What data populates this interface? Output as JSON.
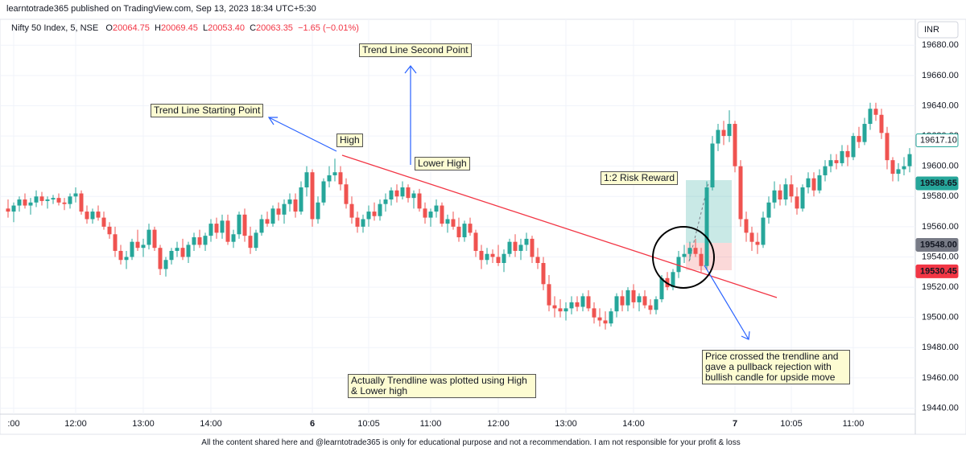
{
  "header": {
    "publisher": "learntotrade365 published on TradingView.com, Sep 13, 2023 18:34 UTC+5:30",
    "symbol": "Nifty 50 Index, 5, NSE",
    "ohlc": [
      {
        "label": "O",
        "value": "20064.75"
      },
      {
        "label": "H",
        "value": "20069.45"
      },
      {
        "label": "L",
        "value": "20053.40"
      },
      {
        "label": "C",
        "value": "20063.35"
      }
    ],
    "change": "−1.65 (−0.01%)",
    "currency": "INR"
  },
  "chart_data": {
    "type": "candlestick",
    "up_color": "#26a69a",
    "down_color": "#ef5350",
    "ylim": [
      19436,
      19686
    ],
    "yticks": [
      {
        "value": 19440,
        "label": "19440.00"
      },
      {
        "value": 19460,
        "label": "19460.00"
      },
      {
        "value": 19480,
        "label": "19480.00"
      },
      {
        "value": 19500,
        "label": "19500.00"
      },
      {
        "value": 19520,
        "label": "19520.00"
      },
      {
        "value": 19540,
        "label": "19540.00"
      },
      {
        "value": 19560,
        "label": "19560.00"
      },
      {
        "value": 19580,
        "label": "19580.00"
      },
      {
        "value": 19600,
        "label": "19600.00"
      },
      {
        "value": 19620,
        "label": "19620.00"
      },
      {
        "value": 19640,
        "label": "19640.00"
      },
      {
        "value": 19660,
        "label": "19660.00"
      },
      {
        "value": 19680,
        "label": "19680.00"
      }
    ],
    "xticks": [
      {
        "value": 1,
        "label": ":00"
      },
      {
        "value": 12,
        "label": "12:00"
      },
      {
        "value": 24,
        "label": "13:00"
      },
      {
        "value": 36,
        "label": "14:00"
      },
      {
        "value": 54,
        "label": "6",
        "bold": true
      },
      {
        "value": 64,
        "label": "10:05"
      },
      {
        "value": 75,
        "label": "11:00"
      },
      {
        "value": 87,
        "label": "12:00"
      },
      {
        "value": 99,
        "label": "13:00"
      },
      {
        "value": 111,
        "label": "14:00"
      },
      {
        "value": 129,
        "label": "7",
        "bold": true
      },
      {
        "value": 139,
        "label": "10:05"
      },
      {
        "value": 150,
        "label": "11:00"
      }
    ],
    "price_labels": [
      {
        "value": 19617.1,
        "label": "19617.10",
        "color": "#26a69a",
        "outline": true
      },
      {
        "value": 19588.65,
        "label": "19588.65",
        "color": "#26a69a"
      },
      {
        "value": 19548,
        "label": "19548.00",
        "color": "#787b86"
      },
      {
        "value": 19530.45,
        "label": "19530.45",
        "color": "#f23645"
      }
    ],
    "annotations": [
      "Trend Line Second Point",
      "Trend Line Starting Point",
      "High",
      "Lower High",
      "1:2 Risk Reward",
      "Price crossed the trendline and gave a pullback rejection with bullish candle for upside move",
      "Actually Trendline was plotted using High & Lower high"
    ],
    "ohlc": [
      [
        19572,
        19578,
        19566,
        19570
      ],
      [
        19570,
        19576,
        19563,
        19574
      ],
      [
        19574,
        19580,
        19570,
        19578
      ],
      [
        19578,
        19582,
        19572,
        19574
      ],
      [
        19574,
        19579,
        19568,
        19576
      ],
      [
        19576,
        19584,
        19573,
        19580
      ],
      [
        19580,
        19583,
        19574,
        19577
      ],
      [
        19577,
        19580,
        19572,
        19578
      ],
      [
        19578,
        19581,
        19575,
        19579
      ],
      [
        19579,
        19582,
        19574,
        19576
      ],
      [
        19576,
        19579,
        19571,
        19575
      ],
      [
        19575,
        19582,
        19572,
        19580
      ],
      [
        19580,
        19586,
        19576,
        19582
      ],
      [
        19582,
        19584,
        19568,
        19570
      ],
      [
        19570,
        19574,
        19562,
        19565
      ],
      [
        19565,
        19572,
        19562,
        19570
      ],
      [
        19570,
        19574,
        19564,
        19566
      ],
      [
        19566,
        19570,
        19558,
        19560
      ],
      [
        19560,
        19563,
        19552,
        19555
      ],
      [
        19555,
        19560,
        19540,
        19544
      ],
      [
        19544,
        19548,
        19535,
        19538
      ],
      [
        19538,
        19544,
        19532,
        19540
      ],
      [
        19540,
        19552,
        19538,
        19550
      ],
      [
        19550,
        19558,
        19544,
        19546
      ],
      [
        19546,
        19552,
        19540,
        19548
      ],
      [
        19548,
        19562,
        19545,
        19558
      ],
      [
        19558,
        19560,
        19544,
        19546
      ],
      [
        19546,
        19548,
        19528,
        19532
      ],
      [
        19532,
        19540,
        19527,
        19538
      ],
      [
        19538,
        19546,
        19535,
        19544
      ],
      [
        19544,
        19550,
        19540,
        19546
      ],
      [
        19546,
        19552,
        19538,
        19540
      ],
      [
        19540,
        19550,
        19536,
        19548
      ],
      [
        19548,
        19556,
        19544,
        19553
      ],
      [
        19553,
        19558,
        19546,
        19548
      ],
      [
        19548,
        19556,
        19544,
        19554
      ],
      [
        19554,
        19565,
        19550,
        19562
      ],
      [
        19562,
        19566,
        19552,
        19556
      ],
      [
        19556,
        19568,
        19552,
        19564
      ],
      [
        19564,
        19568,
        19548,
        19550
      ],
      [
        19550,
        19558,
        19546,
        19555
      ],
      [
        19555,
        19570,
        19552,
        19568
      ],
      [
        19568,
        19572,
        19550,
        19554
      ],
      [
        19554,
        19560,
        19542,
        19546
      ],
      [
        19546,
        19558,
        19544,
        19556
      ],
      [
        19556,
        19568,
        19554,
        19565
      ],
      [
        19565,
        19570,
        19560,
        19562
      ],
      [
        19562,
        19574,
        19560,
        19572
      ],
      [
        19572,
        19576,
        19564,
        19568
      ],
      [
        19568,
        19578,
        19562,
        19575
      ],
      [
        19575,
        19582,
        19570,
        19578
      ],
      [
        19578,
        19582,
        19566,
        19570
      ],
      [
        19570,
        19590,
        19568,
        19586
      ],
      [
        19586,
        19600,
        19580,
        19596
      ],
      [
        19596,
        19598,
        19560,
        19565
      ],
      [
        19565,
        19580,
        19562,
        19576
      ],
      [
        19576,
        19592,
        19574,
        19590
      ],
      [
        19590,
        19600,
        19586,
        19594
      ],
      [
        19594,
        19605,
        19590,
        19596
      ],
      [
        19596,
        19600,
        19584,
        19588
      ],
      [
        19588,
        19592,
        19572,
        19575
      ],
      [
        19575,
        19580,
        19562,
        19566
      ],
      [
        19566,
        19570,
        19556,
        19560
      ],
      [
        19560,
        19568,
        19556,
        19565
      ],
      [
        19565,
        19574,
        19560,
        19570
      ],
      [
        19570,
        19576,
        19564,
        19567
      ],
      [
        19567,
        19578,
        19564,
        19575
      ],
      [
        19575,
        19582,
        19570,
        19578
      ],
      [
        19578,
        19586,
        19574,
        19584
      ],
      [
        19584,
        19588,
        19576,
        19580
      ],
      [
        19580,
        19590,
        19578,
        19586
      ],
      [
        19586,
        19588,
        19576,
        19579
      ],
      [
        19579,
        19584,
        19572,
        19582
      ],
      [
        19582,
        19585,
        19570,
        19572
      ],
      [
        19572,
        19576,
        19562,
        19566
      ],
      [
        19566,
        19572,
        19560,
        19570
      ],
      [
        19570,
        19578,
        19566,
        19574
      ],
      [
        19574,
        19576,
        19560,
        19562
      ],
      [
        19562,
        19568,
        19556,
        19565
      ],
      [
        19565,
        19570,
        19558,
        19560
      ],
      [
        19560,
        19566,
        19550,
        19553
      ],
      [
        19553,
        19564,
        19550,
        19562
      ],
      [
        19562,
        19566,
        19554,
        19556
      ],
      [
        19556,
        19558,
        19540,
        19544
      ],
      [
        19544,
        19548,
        19532,
        19538
      ],
      [
        19538,
        19546,
        19535,
        19542
      ],
      [
        19542,
        19545,
        19536,
        19540
      ],
      [
        19540,
        19548,
        19534,
        19536
      ],
      [
        19536,
        19545,
        19530,
        19542
      ],
      [
        19542,
        19552,
        19540,
        19550
      ],
      [
        19550,
        19555,
        19540,
        19544
      ],
      [
        19544,
        19552,
        19538,
        19548
      ],
      [
        19548,
        19556,
        19544,
        19552
      ],
      [
        19552,
        19554,
        19536,
        19540
      ],
      [
        19540,
        19546,
        19532,
        19536
      ],
      [
        19536,
        19540,
        19518,
        19522
      ],
      [
        19522,
        19528,
        19504,
        19508
      ],
      [
        19508,
        19514,
        19500,
        19506
      ],
      [
        19506,
        19512,
        19500,
        19504
      ],
      [
        19504,
        19510,
        19498,
        19506
      ],
      [
        19506,
        19514,
        19502,
        19510
      ],
      [
        19510,
        19514,
        19504,
        19507
      ],
      [
        19507,
        19516,
        19504,
        19514
      ],
      [
        19514,
        19518,
        19504,
        19506
      ],
      [
        19506,
        19510,
        19496,
        19500
      ],
      [
        19500,
        19506,
        19494,
        19498
      ],
      [
        19498,
        19504,
        19492,
        19496
      ],
      [
        19496,
        19506,
        19494,
        19504
      ],
      [
        19504,
        19516,
        19500,
        19514
      ],
      [
        19514,
        19518,
        19504,
        19508
      ],
      [
        19508,
        19520,
        19504,
        19518
      ],
      [
        19518,
        19522,
        19506,
        19510
      ],
      [
        19510,
        19516,
        19504,
        19514
      ],
      [
        19514,
        19518,
        19506,
        19508
      ],
      [
        19508,
        19512,
        19502,
        19505
      ],
      [
        19505,
        19514,
        19502,
        19512
      ],
      [
        19512,
        19528,
        19510,
        19526
      ],
      [
        19526,
        19530,
        19518,
        19520
      ],
      [
        19520,
        19532,
        19518,
        19530
      ],
      [
        19530,
        19544,
        19526,
        19540
      ],
      [
        19540,
        19548,
        19536,
        19542
      ],
      [
        19542,
        19550,
        19538,
        19546
      ],
      [
        19546,
        19552,
        19540,
        19542
      ],
      [
        19542,
        19546,
        19530,
        19534
      ],
      [
        19534,
        19590,
        19532,
        19586
      ],
      [
        19586,
        19620,
        19584,
        19615
      ],
      [
        19615,
        19628,
        19610,
        19624
      ],
      [
        19624,
        19630,
        19614,
        19620
      ],
      [
        19620,
        19637,
        19616,
        19628
      ],
      [
        19628,
        19630,
        19596,
        19600
      ],
      [
        19600,
        19604,
        19560,
        19565
      ],
      [
        19565,
        19570,
        19550,
        19556
      ],
      [
        19556,
        19560,
        19544,
        19550
      ],
      [
        19550,
        19556,
        19542,
        19548
      ],
      [
        19548,
        19570,
        19546,
        19566
      ],
      [
        19566,
        19580,
        19562,
        19576
      ],
      [
        19576,
        19590,
        19572,
        19584
      ],
      [
        19584,
        19588,
        19574,
        19578
      ],
      [
        19578,
        19592,
        19574,
        19588
      ],
      [
        19588,
        19594,
        19576,
        19580
      ],
      [
        19580,
        19586,
        19568,
        19572
      ],
      [
        19572,
        19588,
        19570,
        19586
      ],
      [
        19586,
        19596,
        19582,
        19592
      ],
      [
        19592,
        19596,
        19580,
        19584
      ],
      [
        19584,
        19598,
        19582,
        19594
      ],
      [
        19594,
        19604,
        19590,
        19600
      ],
      [
        19600,
        19608,
        19596,
        19604
      ],
      [
        19604,
        19608,
        19598,
        19602
      ],
      [
        19602,
        19614,
        19600,
        19610
      ],
      [
        19610,
        19614,
        19600,
        19606
      ],
      [
        19606,
        19622,
        19604,
        19620
      ],
      [
        19620,
        19626,
        19612,
        19616
      ],
      [
        19616,
        19632,
        19614,
        19628
      ],
      [
        19628,
        19642,
        19624,
        19638
      ],
      [
        19638,
        19642,
        19630,
        19634
      ],
      [
        19634,
        19638,
        19618,
        19622
      ],
      [
        19622,
        19626,
        19598,
        19604
      ],
      [
        19604,
        19606,
        19590,
        19595
      ],
      [
        19595,
        19602,
        19590,
        19598
      ],
      [
        19598,
        19606,
        19594,
        19600
      ],
      [
        19600,
        19612,
        19596,
        19608
      ]
    ]
  },
  "footer": "All the content shared here and @learntotrade365 is only for educational purpose and not a recommendation. I am not responsible for your profit & loss"
}
